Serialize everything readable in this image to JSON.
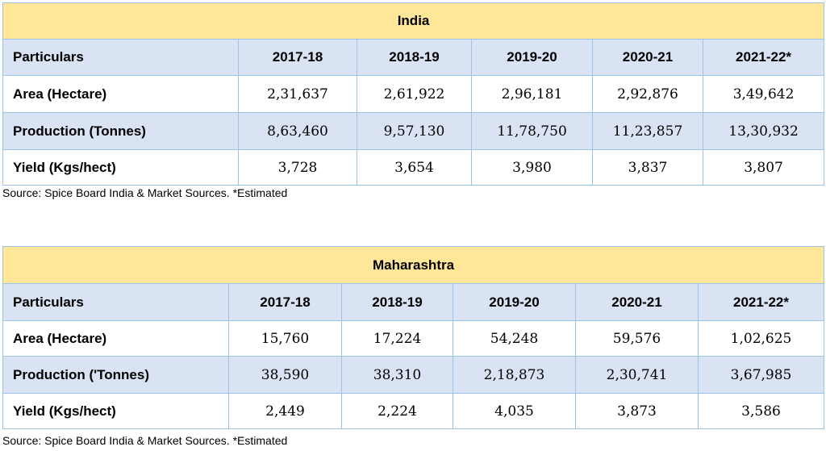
{
  "tables": [
    {
      "title": "India",
      "header": [
        "Particulars",
        "2017-18",
        "2018-19",
        "2019-20",
        "2020-21",
        "2021-22*"
      ],
      "rows": [
        {
          "label": "Area (Hectare)",
          "values": [
            "2,31,637",
            "2,61,922",
            "2,96,181",
            "2,92,876",
            "3,49,642"
          ]
        },
        {
          "label": "Production (Tonnes)",
          "values": [
            "8,63,460",
            "9,57,130",
            "11,78,750",
            "11,23,857",
            "13,30,932"
          ]
        },
        {
          "label": "Yield (Kgs/hect)",
          "values": [
            "3,728",
            "3,654",
            "3,980",
            "3,837",
            "3,807"
          ]
        }
      ],
      "source": "Source: Spice Board India & Market Sources. *Estimated"
    },
    {
      "title": "Maharashtra",
      "header": [
        "Particulars",
        "2017-18",
        "2018-19",
        "2019-20",
        "2020-21",
        "2021-22*"
      ],
      "rows": [
        {
          "label": "Area (Hectare)",
          "values": [
            "15,760",
            "17,224",
            "54,248",
            "59,576",
            "1,02,625"
          ]
        },
        {
          "label": "Production ('Tonnes)",
          "values": [
            "38,590",
            "38,310",
            "2,18,873",
            "2,30,741",
            "3,67,985"
          ]
        },
        {
          "label": "Yield (Kgs/hect)",
          "values": [
            "2,449",
            "2,224",
            "4,035",
            "3,873",
            "3,586"
          ]
        }
      ],
      "source": "Source: Spice Board India & Market Sources. *Estimated"
    }
  ]
}
